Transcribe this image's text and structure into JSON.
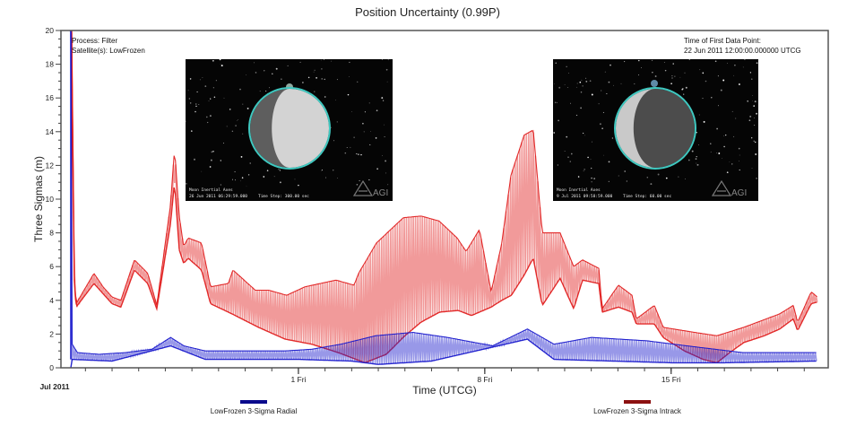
{
  "chart_data": {
    "type": "line",
    "title": "Position Uncertainty (0.99P)",
    "xlabel": "Time (UTCG)",
    "ylabel": "Three Sigmas (m)",
    "x_units": "days relative to 1 Jul 2011 00:00 UTCG",
    "xlim": [
      -8.92,
      19.9
    ],
    "ylim": [
      0,
      20
    ],
    "y_ticks": [
      0,
      2,
      4,
      6,
      8,
      10,
      12,
      14,
      16,
      18,
      20
    ],
    "y_tick_labels": [
      "0",
      "2",
      "4",
      "6",
      "8",
      "10",
      "12",
      "14",
      "16",
      "18",
      "20"
    ],
    "x_major_ticks": [
      {
        "value": 0,
        "label": "1 Fri"
      },
      {
        "value": 7,
        "label": "8 Fri"
      },
      {
        "value": 14,
        "label": "15 Fri"
      }
    ],
    "x_minor_tick_step_days": 1,
    "x_month_label": "Jul 2011",
    "grid": false,
    "legend_position": "bottom",
    "annotations": {
      "top_left": [
        "Process: Filter",
        "Satellite(s): LowFrozen"
      ],
      "top_right": [
        "Time of First Data Point:",
        "22 Jun 2011 12:00:00.000000 UTCG"
      ]
    },
    "insets": [
      {
        "caption_line1": "Moon Inertial Axes",
        "caption_line2": "26 Jun 2011 06:29:59.000",
        "caption_step": "Time Step: 300.00 sec",
        "watermark": "AGI",
        "lit_side": "right"
      },
      {
        "caption_line1": "Moon Inertial Axes",
        "caption_line2": "9 Jul 2011 09:58:59.000",
        "caption_step": "Time Step: 60.00 sec",
        "watermark": "AGI",
        "lit_side": "left"
      }
    ],
    "series": [
      {
        "name": "LowFrozen 3-Sigma Radial",
        "color": "#1a1acc",
        "legend_color": "#0a0a8c",
        "oscillation": "orbital sawtooth between lower and upper envelope",
        "upper": [
          [
            -8.55,
            19.9
          ],
          [
            -8.5,
            1.4
          ],
          [
            -8.3,
            0.9
          ],
          [
            -7.5,
            0.8
          ],
          [
            -6.5,
            0.9
          ],
          [
            -5.5,
            1.1
          ],
          [
            -4.8,
            1.8
          ],
          [
            -4.3,
            1.3
          ],
          [
            -3.5,
            1.0
          ],
          [
            -2.0,
            1.0
          ],
          [
            -0.5,
            1.0
          ],
          [
            0.5,
            1.1
          ],
          [
            1.6,
            1.4
          ],
          [
            2.9,
            1.9
          ],
          [
            4.3,
            2.1
          ],
          [
            5.6,
            1.8
          ],
          [
            7.3,
            1.3
          ],
          [
            8.6,
            2.3
          ],
          [
            9.6,
            1.4
          ],
          [
            11.0,
            1.8
          ],
          [
            13.1,
            1.6
          ],
          [
            14.6,
            1.3
          ],
          [
            16.7,
            0.9
          ],
          [
            19.5,
            0.9
          ]
        ],
        "lower": [
          [
            -8.55,
            0.0
          ],
          [
            -8.5,
            0.5
          ],
          [
            -7.0,
            0.4
          ],
          [
            -4.8,
            1.3
          ],
          [
            -3.5,
            0.5
          ],
          [
            0.0,
            0.5
          ],
          [
            2.0,
            0.4
          ],
          [
            3.0,
            0.2
          ],
          [
            5.0,
            0.4
          ],
          [
            8.6,
            1.7
          ],
          [
            9.6,
            0.5
          ],
          [
            14.0,
            0.3
          ],
          [
            16.0,
            0.3
          ],
          [
            19.5,
            0.4
          ]
        ]
      },
      {
        "name": "LowFrozen 3-Sigma Intrack",
        "color": "#e02020",
        "legend_color": "#8c1010",
        "oscillation": "orbital sawtooth between lower and upper envelope",
        "upper": [
          [
            -8.52,
            19.9
          ],
          [
            -8.42,
            5.5
          ],
          [
            -8.35,
            3.8
          ],
          [
            -7.68,
            5.6
          ],
          [
            -7.34,
            4.8
          ],
          [
            -7.0,
            4.2
          ],
          [
            -6.67,
            4.0
          ],
          [
            -6.16,
            6.4
          ],
          [
            -5.66,
            5.6
          ],
          [
            -5.32,
            3.7
          ],
          [
            -4.81,
            9.6
          ],
          [
            -4.65,
            13.0
          ],
          [
            -4.48,
            9.0
          ],
          [
            -4.31,
            7.2
          ],
          [
            -4.14,
            7.7
          ],
          [
            -3.64,
            7.4
          ],
          [
            -3.3,
            4.8
          ],
          [
            -2.63,
            5.0
          ],
          [
            -2.46,
            5.8
          ],
          [
            -1.62,
            4.6
          ],
          [
            -1.11,
            4.6
          ],
          [
            -0.44,
            4.3
          ],
          [
            0.24,
            4.8
          ],
          [
            1.41,
            5.2
          ],
          [
            2.09,
            4.9
          ],
          [
            2.26,
            5.6
          ],
          [
            2.93,
            7.4
          ],
          [
            3.94,
            8.9
          ],
          [
            4.61,
            9.0
          ],
          [
            5.29,
            8.7
          ],
          [
            5.96,
            7.7
          ],
          [
            6.3,
            6.9
          ],
          [
            6.8,
            8.2
          ],
          [
            7.24,
            4.5
          ],
          [
            7.64,
            7.4
          ],
          [
            7.98,
            11.4
          ],
          [
            8.48,
            13.8
          ],
          [
            8.82,
            14.1
          ],
          [
            9.16,
            8.0
          ],
          [
            9.83,
            8.0
          ],
          [
            10.34,
            6.0
          ],
          [
            10.67,
            6.4
          ],
          [
            11.28,
            5.9
          ],
          [
            11.41,
            3.5
          ],
          [
            12.02,
            4.9
          ],
          [
            12.53,
            4.3
          ],
          [
            12.69,
            2.9
          ],
          [
            13.37,
            3.7
          ],
          [
            13.7,
            2.4
          ],
          [
            14.88,
            2.1
          ],
          [
            15.72,
            1.9
          ],
          [
            16.73,
            2.4
          ],
          [
            18.08,
            3.2
          ],
          [
            18.59,
            3.7
          ],
          [
            18.75,
            2.7
          ],
          [
            19.26,
            4.5
          ],
          [
            19.49,
            4.2
          ]
        ],
        "lower": [
          [
            -8.52,
            19.9
          ],
          [
            -8.42,
            5.2
          ],
          [
            -8.35,
            3.6
          ],
          [
            -7.68,
            5.0
          ],
          [
            -7.34,
            4.4
          ],
          [
            -7.0,
            3.8
          ],
          [
            -6.67,
            3.6
          ],
          [
            -6.16,
            5.8
          ],
          [
            -5.66,
            5.0
          ],
          [
            -5.32,
            3.5
          ],
          [
            -4.81,
            8.5
          ],
          [
            -4.65,
            11.0
          ],
          [
            -4.48,
            7.0
          ],
          [
            -4.31,
            6.2
          ],
          [
            -4.14,
            6.5
          ],
          [
            -3.64,
            5.8
          ],
          [
            -3.3,
            3.8
          ],
          [
            -2.5,
            3.2
          ],
          [
            -1.5,
            2.4
          ],
          [
            -0.5,
            1.7
          ],
          [
            0.5,
            1.4
          ],
          [
            1.5,
            0.9
          ],
          [
            2.5,
            0.3
          ],
          [
            3.3,
            0.8
          ],
          [
            4.0,
            1.9
          ],
          [
            4.6,
            2.7
          ],
          [
            5.3,
            3.3
          ],
          [
            6.0,
            3.4
          ],
          [
            6.5,
            3.1
          ],
          [
            7.24,
            3.6
          ],
          [
            7.64,
            4.0
          ],
          [
            8.0,
            4.3
          ],
          [
            8.48,
            5.5
          ],
          [
            8.82,
            6.5
          ],
          [
            9.16,
            3.7
          ],
          [
            9.83,
            5.3
          ],
          [
            10.34,
            3.5
          ],
          [
            10.67,
            5.2
          ],
          [
            11.28,
            5.0
          ],
          [
            11.41,
            3.3
          ],
          [
            12.02,
            3.6
          ],
          [
            12.53,
            3.3
          ],
          [
            12.69,
            2.6
          ],
          [
            13.37,
            2.6
          ],
          [
            13.7,
            1.8
          ],
          [
            14.5,
            1.0
          ],
          [
            15.2,
            0.5
          ],
          [
            15.72,
            0.3
          ],
          [
            16.2,
            0.9
          ],
          [
            16.73,
            1.5
          ],
          [
            17.5,
            1.9
          ],
          [
            18.08,
            2.3
          ],
          [
            18.59,
            2.9
          ],
          [
            18.75,
            2.2
          ],
          [
            19.26,
            3.8
          ],
          [
            19.49,
            3.9
          ]
        ]
      }
    ]
  }
}
